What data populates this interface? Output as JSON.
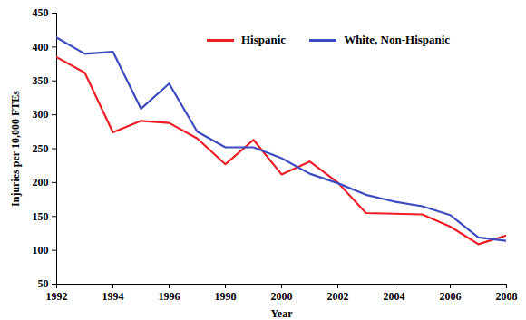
{
  "chart_data": {
    "type": "line",
    "x_label": "Year",
    "y_label": "Injuries per 10,000 FTEs",
    "x": [
      1992,
      1993,
      1994,
      1995,
      1996,
      1997,
      1998,
      1999,
      2000,
      2001,
      2002,
      2003,
      2004,
      2005,
      2006,
      2007,
      2008
    ],
    "series": [
      {
        "name": "Hispanic",
        "color": "#ee1c25",
        "values": [
          385,
          362,
          274,
          291,
          288,
          265,
          227,
          263,
          212,
          231,
          200,
          155,
          154,
          153,
          135,
          109,
          122
        ]
      },
      {
        "name": "White, Non-Hispanic",
        "color": "#3b4cc0",
        "values": [
          414,
          390,
          393,
          309,
          346,
          275,
          252,
          252,
          236,
          213,
          199,
          182,
          172,
          165,
          152,
          119,
          114
        ]
      }
    ],
    "xlim": [
      1992,
      2008
    ],
    "xticks": [
      1992,
      1994,
      1996,
      1998,
      2000,
      2002,
      2004,
      2006,
      2008
    ],
    "ylim": [
      50,
      450
    ],
    "yticks": [
      50,
      100,
      150,
      200,
      250,
      300,
      350,
      400,
      450
    ],
    "grid": false,
    "legend": "top"
  }
}
